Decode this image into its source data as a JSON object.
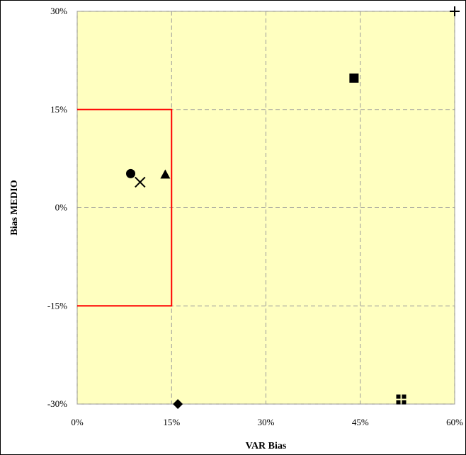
{
  "chart_data": {
    "type": "scatter",
    "title": "",
    "xlabel": "VAR Bias",
    "ylabel": "Bias MEDIO",
    "xlim": [
      0,
      60
    ],
    "ylim": [
      -30,
      30
    ],
    "x_ticks": [
      0,
      15,
      30,
      45,
      60
    ],
    "y_ticks": [
      -30,
      -15,
      0,
      15,
      30
    ],
    "x_tick_labels": [
      "0%",
      "15%",
      "30%",
      "45%",
      "60%"
    ],
    "y_tick_labels": [
      "-30%",
      "-15%",
      "0%",
      "15%",
      "30%"
    ],
    "grid": true,
    "background_color": "#FFFFC0",
    "grid_color": "#999999",
    "target_region": {
      "x": [
        0,
        15
      ],
      "y": [
        -15,
        15
      ],
      "color": "#FF0000"
    },
    "points": [
      {
        "marker": "circle",
        "x": 8.5,
        "y": 5.2
      },
      {
        "marker": "x",
        "x": 10,
        "y": 3.9
      },
      {
        "marker": "triangle",
        "x": 14,
        "y": 5.1
      },
      {
        "marker": "square",
        "x": 44,
        "y": 19.8
      },
      {
        "marker": "plus",
        "x": 60,
        "y": 30
      },
      {
        "marker": "diamond",
        "x": 16,
        "y": -30
      },
      {
        "marker": "grid-square",
        "x": 51.5,
        "y": -29.3
      }
    ]
  }
}
